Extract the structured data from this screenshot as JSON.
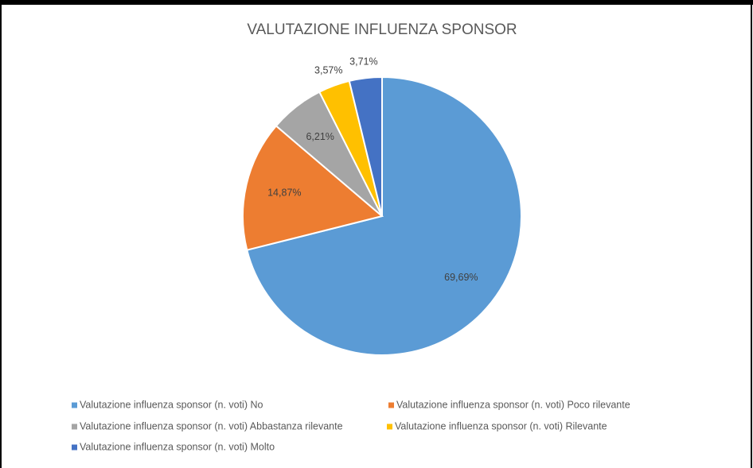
{
  "chart_data": {
    "type": "pie",
    "title": "VALUTAZIONE INFLUENZA SPONSOR",
    "categories": [
      "Valutazione influenza sponsor (n. voti) No",
      "Valutazione influenza sponsor (n. voti) Poco rilevante",
      "Valutazione influenza sponsor (n. voti) Abbastanza rilevante",
      "Valutazione influenza sponsor (n. voti) Rilevante",
      "Valutazione influenza sponsor (n. voti) Molto"
    ],
    "values": [
      69.69,
      14.87,
      6.21,
      3.57,
      3.71
    ],
    "value_labels": [
      "69,69%",
      "14,87%",
      "6,21%",
      "3,57%",
      "3,71%"
    ],
    "colors": [
      "#5b9bd5",
      "#ed7d31",
      "#a5a5a5",
      "#ffc000",
      "#4472c4"
    ],
    "legend": "bottom"
  }
}
